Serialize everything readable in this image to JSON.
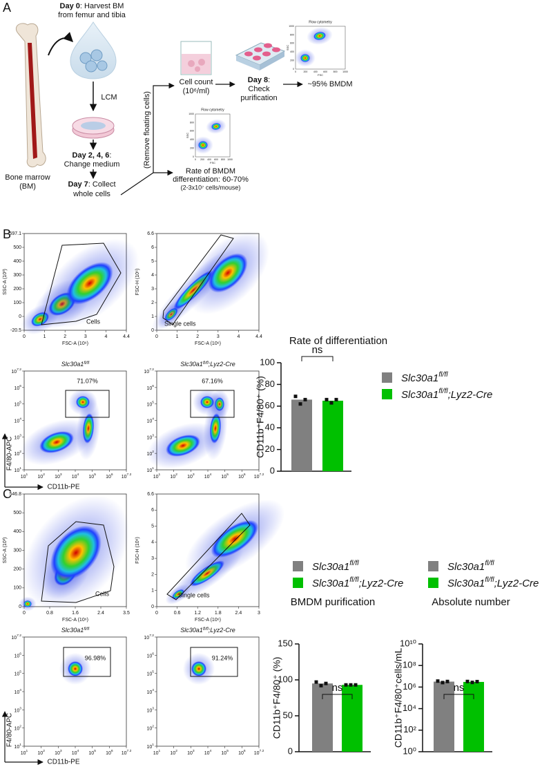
{
  "panel_labels": [
    "A",
    "B",
    "C"
  ],
  "panel_a": {
    "day0_bold": "Day 0",
    "day0_rest": ": Harvest BM",
    "day0_line2": "from femur and tibia",
    "lcm": "LCM",
    "bone_marrow": [
      "Bone marrow",
      "(BM)"
    ],
    "day246_bold": "Day 2, 4, 6",
    "day246_rest": ":",
    "day246_line2": "Change medium",
    "day7_bold": "Day 7",
    "day7_rest": ": Collect",
    "day7_line2": "whole cells",
    "remove": "(Remove floating cells)",
    "cell_count": [
      "Cell count",
      "(10⁶/ml)"
    ],
    "day8_bold": "Day 8",
    "day8_rest": ":",
    "day8_lines": [
      "Check",
      "purification"
    ],
    "bmdm95": "~95% BMDM",
    "rate": [
      "Rate of BMDM",
      "differentiation: 60-70%",
      "(2-3x10⁷ cells/mouse)"
    ],
    "mini_flow": {
      "title": "Flow cytometry",
      "ylabel": "SSC",
      "xlabel": "FSC",
      "xticks": [
        "0",
        "200",
        "400",
        "600",
        "800",
        "1000"
      ],
      "yticks": [
        "0",
        "200",
        "400",
        "600",
        "800",
        "1000"
      ]
    }
  },
  "flow_plots": {
    "B": {
      "scatter_gate": {
        "ylabel": "SSC-A (10³)",
        "xlabel": "FSC-A (10⁶)",
        "yticks": [
          "-20.5",
          "0",
          "100",
          "200",
          "300",
          "400",
          "500",
          "597.1"
        ],
        "xticks": [
          "0",
          "1",
          "2",
          "3",
          "4",
          "4.4"
        ],
        "gate": "Cells"
      },
      "singlet_gate": {
        "ylabel": "FSC-H (10⁶)",
        "xlabel": "FSC-A (10⁶)",
        "yticks": [
          "0",
          "1",
          "2",
          "3",
          "4",
          "5",
          "6",
          "6.6"
        ],
        "xticks": [
          "0",
          "1",
          "2",
          "3",
          "4",
          "4.4"
        ],
        "gate": "Single cells"
      },
      "markers": {
        "ylabel": "F4/80-APC",
        "xlabel": "CD11b-PE",
        "base": "10",
        "exponents": [
          "1",
          "2",
          "3",
          "4",
          "5",
          "6",
          "7.2"
        ]
      },
      "groups": [
        {
          "title": "Slc30a1",
          "title_sup": "fl/fl",
          "gate_pct": "71.07%"
        },
        {
          "title": "Slc30a1",
          "title_sup": "fl/fl",
          "title_suffix": ";Lyz2-Cre",
          "gate_pct": "67.16%"
        }
      ]
    },
    "C": {
      "scatter_gate": {
        "ylabel": "SSC-A (10³)",
        "xlabel": "FSC-A (10⁶)",
        "yticks": [
          "0",
          "100",
          "200",
          "300",
          "400",
          "500",
          "546.8"
        ],
        "xticks": [
          "0",
          "0.8",
          "1.6",
          "2.4",
          "3.5"
        ],
        "gate": "Cells"
      },
      "singlet_gate": {
        "ylabel": "FSC-H (10⁶)",
        "xlabel": "FSC-A (10⁶)",
        "yticks": [
          "0",
          "1",
          "2",
          "3",
          "4",
          "5",
          "6",
          "6.6"
        ],
        "xticks": [
          "0",
          "0.6",
          "1.2",
          "1.8",
          "2.4",
          "3"
        ],
        "gate": "Single cells"
      },
      "markers": {
        "ylabel": "F4/80-APC",
        "xlabel": "CD11b-PE",
        "base": "10",
        "exponents": [
          "1",
          "2",
          "3",
          "4",
          "5",
          "6",
          "7.2"
        ]
      },
      "groups": [
        {
          "title": "Slc30a1",
          "title_sup": "fl/fl",
          "gate_pct": "96.98%"
        },
        {
          "title": "Slc30a1",
          "title_sup": "fl/fl",
          "title_suffix": ";Lyz2-Cre",
          "gate_pct": "91.24%"
        }
      ]
    }
  },
  "chart_data": [
    {
      "type": "bar",
      "title": "Rate of differentiation",
      "y_label": "CD11b⁺F4/80⁺ (%)",
      "annotation": "ns",
      "ylim": [
        0,
        100
      ],
      "yticks": [
        0,
        20,
        40,
        60,
        80,
        100
      ],
      "series": [
        {
          "name": "Slc30a1",
          "name_sup": "fl/fl",
          "color": "#808080",
          "values": [
            66
          ],
          "points": [
            69,
            62,
            66
          ]
        },
        {
          "name": "Slc30a1",
          "name_sup": "fl/fl",
          "name_suffix": ";Lyz2-Cre",
          "color": "#00c000",
          "values": [
            65
          ],
          "points": [
            66,
            63,
            66
          ]
        }
      ]
    },
    {
      "type": "bar",
      "title": "BMDM purification",
      "y_label": "CD11b⁺F4/80⁺ (%)",
      "annotation": "ns",
      "ylim": [
        0,
        150
      ],
      "yticks": [
        0,
        50,
        100,
        150
      ],
      "series": [
        {
          "name": "Slc30a1",
          "name_sup": "fl/fl",
          "color": "#808080",
          "values": [
            95
          ],
          "points": [
            97,
            92,
            95
          ]
        },
        {
          "name": "Slc30a1",
          "name_sup": "fl/fl",
          "name_suffix": ";Lyz2-Cre",
          "color": "#00c000",
          "values": [
            93
          ],
          "points": [
            93,
            93,
            93
          ]
        }
      ]
    },
    {
      "type": "bar",
      "title": "Absolute number",
      "y_label": "CD11b⁺F4/80⁺cells/mL",
      "annotation": "ns",
      "log_scale": true,
      "ylim": [
        1,
        10000000000
      ],
      "yticks": [
        {
          "value": 1,
          "label": "10⁰"
        },
        {
          "value": 100,
          "label": "10²"
        },
        {
          "value": 10000,
          "label": "10⁴"
        },
        {
          "value": 1000000,
          "label": "10⁶"
        },
        {
          "value": 100000000,
          "label": "10⁸"
        },
        {
          "value": 10000000000,
          "label": "10¹⁰"
        }
      ],
      "series": [
        {
          "name": "Slc30a1",
          "name_sup": "fl/fl",
          "color": "#808080",
          "values": [
            3200000
          ],
          "points": [
            3600000,
            2600000,
            3300000
          ]
        },
        {
          "name": "Slc30a1",
          "name_sup": "fl/fl",
          "name_suffix": ";Lyz2-Cre",
          "color": "#00c000",
          "values": [
            3000000
          ],
          "points": [
            3300000,
            2700000,
            3200000
          ]
        }
      ]
    }
  ]
}
